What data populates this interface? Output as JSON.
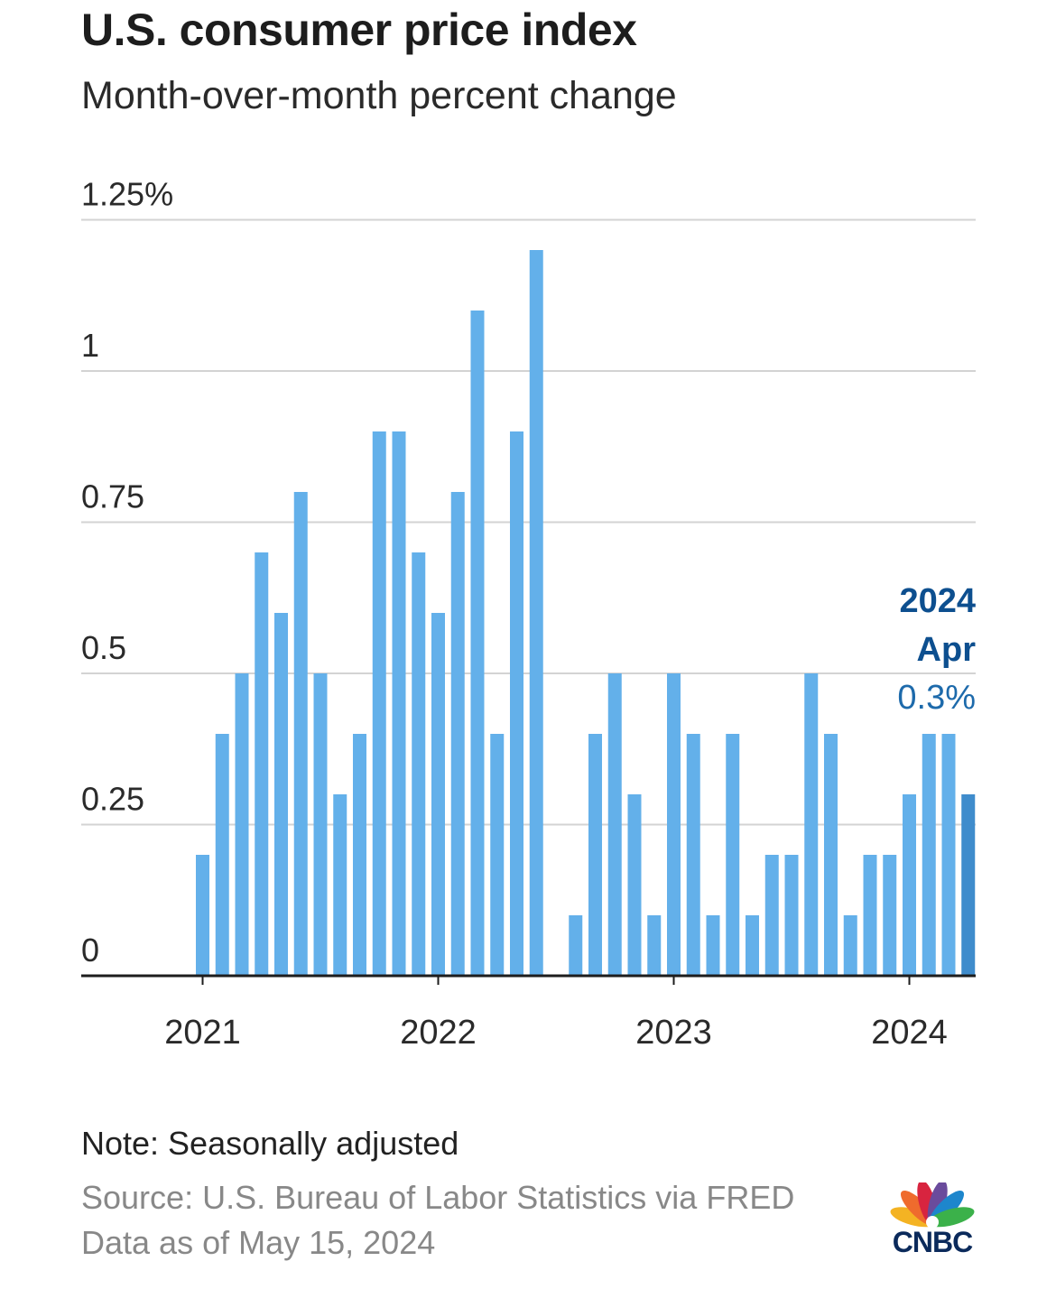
{
  "header": {
    "title": "U.S. consumer price index",
    "subtitle": "Month-over-month percent change"
  },
  "footer": {
    "note": "Note: Seasonally adjusted",
    "source": "Source: U.S. Bureau of Labor Statistics via FRED",
    "as_of": "Data as of May 15, 2024"
  },
  "logo": {
    "text": "CNBC",
    "icon": "cnbc-peacock-logo"
  },
  "colors": {
    "bar": "#63b0ea",
    "bar_highlight": "#3f8ccc",
    "callout_dark": "#0d4f8f",
    "callout_light": "#1d6aab",
    "grid": "#d3d3d3",
    "axis": "#1d1d1d"
  },
  "chart_data": {
    "type": "bar",
    "title": "U.S. consumer price index",
    "subtitle": "Month-over-month percent change",
    "y_ticks": [
      "0",
      "0.25",
      "0.5",
      "0.75",
      "1",
      "1.25%"
    ],
    "y_tick_values": [
      0,
      0.25,
      0.5,
      0.75,
      1,
      1.25
    ],
    "ylim": [
      0,
      1.25
    ],
    "x_ticks": [
      "2021",
      "2022",
      "2023",
      "2024"
    ],
    "grid": true,
    "categories": [
      "2021-01",
      "2021-02",
      "2021-03",
      "2021-04",
      "2021-05",
      "2021-06",
      "2021-07",
      "2021-08",
      "2021-09",
      "2021-10",
      "2021-11",
      "2021-12",
      "2022-01",
      "2022-02",
      "2022-03",
      "2022-04",
      "2022-05",
      "2022-06",
      "2022-07",
      "2022-08",
      "2022-09",
      "2022-10",
      "2022-11",
      "2022-12",
      "2023-01",
      "2023-02",
      "2023-03",
      "2023-04",
      "2023-05",
      "2023-06",
      "2023-07",
      "2023-08",
      "2023-09",
      "2023-10",
      "2023-11",
      "2023-12",
      "2024-01",
      "2024-02",
      "2024-03",
      "2024-04"
    ],
    "values": [
      0.2,
      0.4,
      0.5,
      0.7,
      0.6,
      0.8,
      0.5,
      0.3,
      0.4,
      0.9,
      0.9,
      0.7,
      0.6,
      0.8,
      1.1,
      0.4,
      0.9,
      1.2,
      0.0,
      0.1,
      0.4,
      0.5,
      0.3,
      0.1,
      0.5,
      0.4,
      0.1,
      0.4,
      0.1,
      0.2,
      0.2,
      0.5,
      0.4,
      0.1,
      0.2,
      0.2,
      0.3,
      0.4,
      0.4,
      0.3
    ],
    "highlight_index": 39,
    "annotation": {
      "year": "2024",
      "month": "Apr",
      "value": "0.3%"
    }
  }
}
